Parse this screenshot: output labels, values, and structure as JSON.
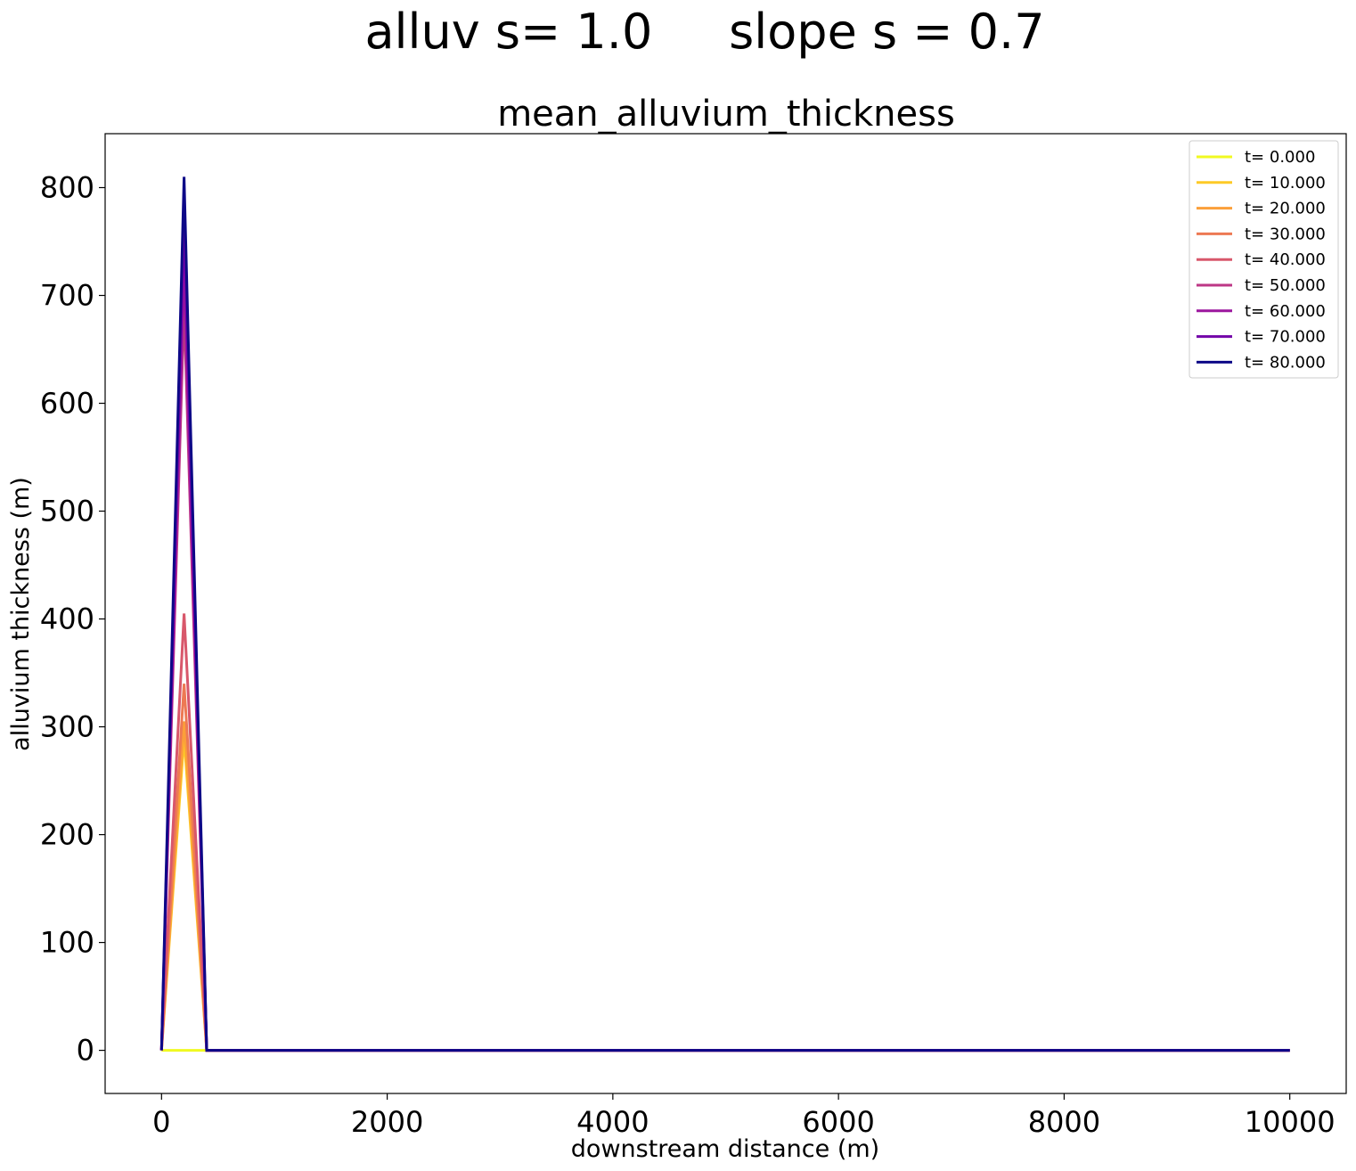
{
  "suptitle": "alluv s= 1.0     slope s = 0.7",
  "chart_data": {
    "type": "line",
    "title": "mean_alluvium_thickness",
    "xlabel": "downstream distance (m)",
    "ylabel": "alluvium thickness (m)",
    "xlim": [
      -500,
      10500
    ],
    "ylim": [
      -40,
      850
    ],
    "xticks": [
      0,
      2000,
      4000,
      6000,
      8000,
      10000
    ],
    "xtick_labels": [
      "0",
      "2000",
      "4000",
      "6000",
      "8000",
      "10000"
    ],
    "yticks": [
      0,
      100,
      200,
      300,
      400,
      500,
      600,
      700,
      800
    ],
    "ytick_labels": [
      "0",
      "100",
      "200",
      "300",
      "400",
      "500",
      "600",
      "700",
      "800"
    ],
    "grid": false,
    "legend_position": "top-right",
    "x": [
      0,
      200,
      400,
      600,
      10000
    ],
    "series": [
      {
        "name": "t= 0.000",
        "color": "#f0f921",
        "values": [
          0,
          0,
          0,
          0,
          0
        ]
      },
      {
        "name": "t= 10.000",
        "color": "#fdca26",
        "values": [
          0,
          290,
          0,
          0,
          0
        ]
      },
      {
        "name": "t= 20.000",
        "color": "#fb9f3a",
        "values": [
          0,
          305,
          0,
          0,
          0
        ]
      },
      {
        "name": "t= 30.000",
        "color": "#ed7953",
        "values": [
          0,
          340,
          0,
          0,
          0
        ]
      },
      {
        "name": "t= 40.000",
        "color": "#d8576b",
        "values": [
          0,
          405,
          0,
          0,
          0
        ]
      },
      {
        "name": "t= 50.000",
        "color": "#bd3786",
        "values": [
          0,
          690,
          0,
          0,
          0
        ]
      },
      {
        "name": "t= 60.000",
        "color": "#9c179e",
        "values": [
          0,
          730,
          0,
          0,
          0
        ]
      },
      {
        "name": "t= 70.000",
        "color": "#7201a8",
        "values": [
          0,
          770,
          0,
          0,
          0
        ]
      },
      {
        "name": "t= 80.000",
        "color": "#0d0887",
        "values": [
          0,
          810,
          0,
          0,
          0
        ]
      }
    ]
  }
}
